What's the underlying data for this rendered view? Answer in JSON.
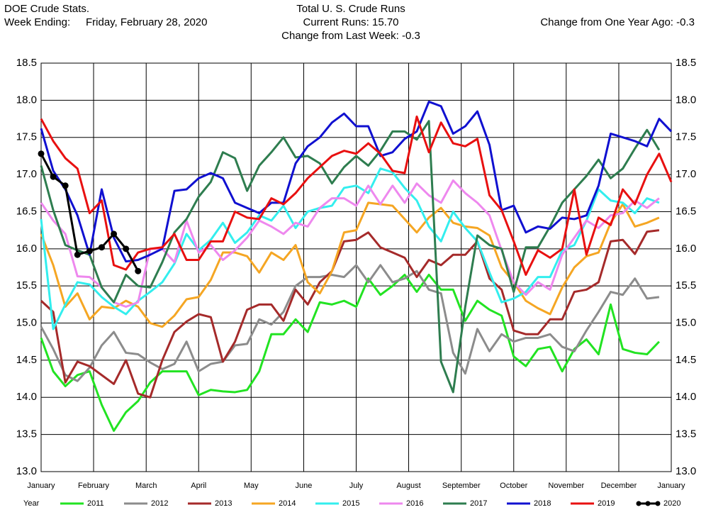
{
  "chart_data": {
    "type": "line",
    "header": {
      "left_title": "DOE Crude Stats.",
      "week_label": "Week Ending:",
      "week_date": "Friday, February 28, 2020",
      "title": "Total U. S. Crude Runs",
      "current": "Current Runs: 15.70",
      "change_week": "Change from Last Week:  -0.3",
      "change_year": "Change from One Year Ago:  -0.3"
    },
    "legend_title": "Year",
    "grid": true,
    "xlim": [
      0,
      52
    ],
    "xticks": [
      {
        "value": 0,
        "label": "January"
      },
      {
        "value": 4.33,
        "label": "February"
      },
      {
        "value": 8.67,
        "label": "March"
      },
      {
        "value": 13,
        "label": "April"
      },
      {
        "value": 17.33,
        "label": "May"
      },
      {
        "value": 21.67,
        "label": "June"
      },
      {
        "value": 26,
        "label": "July"
      },
      {
        "value": 30.33,
        "label": "August"
      },
      {
        "value": 34.67,
        "label": "September"
      },
      {
        "value": 39,
        "label": "October"
      },
      {
        "value": 43.33,
        "label": "November"
      },
      {
        "value": 47.67,
        "label": "December"
      },
      {
        "value": 52,
        "label": "January"
      }
    ],
    "ylim": [
      13,
      18.5
    ],
    "yticks": [
      {
        "value": 13,
        "label": "13.0"
      },
      13.5,
      {
        "value": 14,
        "label": "14.0"
      },
      14.5,
      {
        "value": 15,
        "label": "15.0"
      },
      15.5,
      {
        "value": 16,
        "label": "16.0"
      },
      16.5,
      {
        "value": 17,
        "label": "17.0"
      },
      17.5,
      {
        "value": 18,
        "label": "18.0"
      },
      18.5
    ],
    "x": [
      0,
      1,
      2,
      3,
      4,
      5,
      6,
      7,
      8,
      9,
      10,
      11,
      12,
      13,
      14,
      15,
      16,
      17,
      18,
      19,
      20,
      21,
      22,
      23,
      24,
      25,
      26,
      27,
      28,
      29,
      30,
      31,
      32,
      33,
      34,
      35,
      36,
      37,
      38,
      39,
      40,
      41,
      42,
      43,
      44,
      45,
      46,
      47,
      48,
      49,
      50,
      51,
      52
    ],
    "series": [
      {
        "name": "2011",
        "color": "#22e322",
        "values": [
          14.8,
          14.35,
          14.15,
          14.3,
          14.35,
          13.9,
          13.55,
          13.8,
          13.95,
          14.2,
          14.35,
          14.35,
          14.35,
          14.03,
          14.1,
          14.08,
          14.07,
          14.1,
          14.35,
          14.85,
          14.85,
          15.05,
          14.88,
          15.28,
          15.25,
          15.3,
          15.22,
          15.6,
          15.38,
          15.5,
          15.65,
          15.42,
          15.65,
          15.45,
          15.45,
          15.03,
          15.3,
          15.18,
          15.1,
          14.55,
          14.42,
          14.65,
          14.68,
          14.35,
          14.65,
          14.78,
          14.58,
          15.25,
          14.65,
          14.6,
          14.58,
          14.75,
          null
        ]
      },
      {
        "name": "2012",
        "color": "#8c8c8c",
        "values": [
          14.95,
          14.65,
          14.3,
          14.22,
          14.4,
          14.7,
          14.88,
          14.6,
          14.58,
          14.47,
          14.38,
          14.45,
          14.75,
          14.35,
          14.45,
          14.48,
          14.7,
          14.72,
          15.05,
          14.98,
          15.15,
          15.5,
          15.62,
          15.62,
          15.65,
          15.62,
          15.78,
          15.55,
          15.78,
          15.55,
          15.6,
          15.7,
          15.45,
          15.4,
          14.6,
          14.32,
          14.92,
          14.62,
          14.85,
          14.75,
          14.8,
          14.8,
          14.85,
          14.68,
          14.62,
          14.9,
          15.15,
          15.42,
          15.38,
          15.6,
          15.33,
          15.35,
          null
        ]
      },
      {
        "name": "2013",
        "color": "#a52a2a",
        "values": [
          15.3,
          15.15,
          14.2,
          14.48,
          14.42,
          14.3,
          14.18,
          14.5,
          14.05,
          14.0,
          14.5,
          14.88,
          15.02,
          15.12,
          15.08,
          14.48,
          14.75,
          15.18,
          15.25,
          15.25,
          15.03,
          15.45,
          15.25,
          15.55,
          15.7,
          16.1,
          16.12,
          16.22,
          16.02,
          15.95,
          15.88,
          15.62,
          15.85,
          15.78,
          15.92,
          15.92,
          16.1,
          15.6,
          15.45,
          14.9,
          14.85,
          14.85,
          15.05,
          15.05,
          15.42,
          15.45,
          15.55,
          16.1,
          16.12,
          15.93,
          16.23,
          16.25,
          null
        ]
      },
      {
        "name": "2014",
        "color": "#f5a623",
        "values": [
          16.2,
          15.78,
          15.22,
          15.4,
          15.05,
          15.22,
          15.2,
          15.3,
          15.22,
          15.0,
          14.95,
          15.1,
          15.32,
          15.35,
          15.58,
          15.95,
          15.95,
          15.9,
          15.68,
          15.95,
          15.85,
          16.05,
          15.55,
          15.4,
          15.7,
          16.22,
          16.25,
          16.62,
          16.6,
          16.58,
          16.4,
          16.22,
          16.42,
          16.55,
          16.35,
          16.3,
          16.28,
          16.18,
          15.75,
          15.55,
          15.3,
          15.2,
          15.12,
          15.48,
          15.75,
          15.9,
          15.95,
          16.35,
          16.6,
          16.3,
          16.35,
          16.42,
          null
        ]
      },
      {
        "name": "2015",
        "color": "#33eeee",
        "values": [
          16.4,
          14.92,
          15.25,
          15.55,
          15.52,
          15.35,
          15.22,
          15.12,
          15.3,
          15.42,
          15.55,
          15.8,
          16.2,
          15.98,
          16.12,
          16.35,
          16.08,
          16.22,
          16.45,
          16.38,
          16.58,
          16.28,
          16.5,
          16.55,
          16.58,
          16.82,
          16.85,
          16.75,
          17.08,
          17.03,
          16.82,
          16.65,
          16.3,
          16.1,
          16.5,
          16.28,
          16.1,
          15.68,
          15.28,
          15.33,
          15.42,
          15.62,
          15.62,
          15.98,
          16.05,
          16.38,
          16.8,
          16.65,
          16.62,
          16.48,
          16.68,
          16.62,
          null
        ]
      },
      {
        "name": "2016",
        "color": "#ee88ee",
        "values": [
          16.62,
          16.38,
          16.2,
          15.63,
          15.62,
          15.48,
          15.28,
          15.22,
          15.28,
          16.0,
          16.0,
          15.82,
          16.38,
          15.95,
          16.05,
          15.85,
          15.98,
          16.15,
          16.38,
          16.3,
          16.2,
          16.35,
          16.3,
          16.55,
          16.68,
          16.68,
          16.58,
          16.85,
          16.6,
          16.85,
          16.62,
          16.88,
          16.72,
          16.62,
          16.92,
          16.75,
          16.62,
          16.45,
          15.98,
          15.55,
          15.38,
          15.55,
          15.45,
          15.92,
          16.15,
          16.38,
          16.28,
          16.45,
          16.48,
          16.65,
          16.55,
          16.68,
          null
        ]
      },
      {
        "name": "2017",
        "color": "#2e7d4f",
        "values": [
          17.12,
          16.52,
          16.05,
          15.98,
          15.92,
          15.48,
          15.28,
          15.65,
          15.5,
          15.48,
          15.82,
          16.22,
          16.4,
          16.7,
          16.9,
          17.3,
          17.22,
          16.78,
          17.12,
          17.3,
          17.5,
          17.23,
          17.25,
          17.15,
          16.88,
          17.1,
          17.25,
          17.12,
          17.32,
          17.58,
          17.58,
          17.47,
          17.72,
          14.48,
          14.07,
          15.22,
          16.18,
          16.05,
          16.0,
          15.42,
          16.02,
          16.02,
          16.3,
          16.62,
          16.8,
          16.98,
          17.2,
          16.95,
          17.08,
          17.35,
          17.6,
          17.33,
          null
        ]
      },
      {
        "name": "2018",
        "color": "#1010d0",
        "values": [
          17.62,
          17.05,
          16.8,
          16.45,
          15.92,
          16.8,
          16.15,
          15.83,
          15.85,
          15.92,
          16.0,
          16.78,
          16.8,
          16.95,
          17.02,
          16.95,
          16.62,
          16.55,
          16.48,
          16.62,
          16.62,
          17.15,
          17.38,
          17.5,
          17.7,
          17.82,
          17.65,
          17.65,
          17.25,
          17.3,
          17.48,
          17.58,
          17.98,
          17.92,
          17.55,
          17.65,
          17.85,
          17.4,
          16.52,
          16.58,
          16.22,
          16.3,
          16.27,
          16.42,
          16.4,
          16.45,
          16.85,
          17.55,
          17.5,
          17.45,
          17.38,
          17.75,
          17.58
        ]
      },
      {
        "name": "2019",
        "color": "#e81010",
        "values": [
          17.75,
          17.45,
          17.22,
          17.08,
          16.48,
          16.65,
          15.78,
          15.72,
          15.95,
          16.0,
          16.02,
          16.2,
          15.85,
          15.85,
          16.1,
          16.1,
          16.5,
          16.42,
          16.4,
          16.68,
          16.6,
          16.75,
          16.95,
          17.1,
          17.25,
          17.32,
          17.28,
          17.42,
          17.28,
          17.05,
          17.02,
          17.78,
          17.3,
          17.7,
          17.42,
          17.38,
          17.48,
          16.72,
          16.52,
          16.1,
          15.65,
          15.98,
          15.88,
          16.0,
          16.8,
          15.92,
          16.42,
          16.32,
          16.8,
          16.6,
          17.0,
          17.28,
          16.9
        ]
      },
      {
        "name": "2020",
        "color": "#000000",
        "markers": true,
        "values": [
          17.28,
          16.97,
          16.85,
          15.92,
          15.97,
          16.02,
          16.2,
          16.0,
          15.7,
          null,
          null,
          null,
          null,
          null,
          null,
          null,
          null,
          null,
          null,
          null,
          null,
          null,
          null,
          null,
          null,
          null,
          null,
          null,
          null,
          null,
          null,
          null,
          null,
          null,
          null,
          null,
          null,
          null,
          null,
          null,
          null,
          null,
          null,
          null,
          null,
          null,
          null,
          null,
          null,
          null,
          null,
          null,
          null
        ]
      }
    ]
  }
}
